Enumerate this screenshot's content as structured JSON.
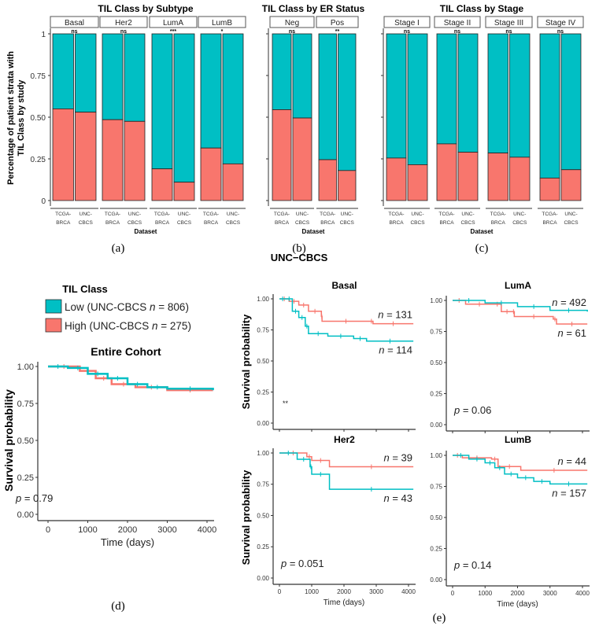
{
  "colors": {
    "low": "#00BFC4",
    "high": "#F8766D"
  },
  "bar_common": {
    "ylabel_line1": "Percentage of patient strata with",
    "ylabel_line2": "TIL Class by study",
    "xlabel": "Dataset",
    "yticks": [
      "0",
      "0.25",
      "0.50",
      "0.75",
      "1"
    ],
    "datasets": [
      [
        "TCGA-",
        "BRCA"
      ],
      [
        "UNC-",
        "CBCS"
      ]
    ]
  },
  "captions": {
    "a": "(a)",
    "b": "(b)",
    "c": "(c)",
    "d": "(d)",
    "e": "(e)"
  },
  "km_header": "UNC−CBCS",
  "legend": {
    "title": "TIL Class",
    "items": [
      {
        "label": "Low (UNC-CBCS ",
        "n": "n",
        "value": " = 806)",
        "color": "#00BFC4"
      },
      {
        "label": "High (UNC-CBCS ",
        "n": "n",
        "value": " = 275)",
        "color": "#F8766D"
      }
    ]
  },
  "km_common": {
    "ylabel": "Survival probability",
    "xlabel": "Time (days)",
    "yticks": [
      "0.00",
      "0.25",
      "0.50",
      "0.75",
      "1.00"
    ],
    "xticks": [
      "0",
      "1000",
      "2000",
      "3000",
      "4000"
    ]
  },
  "chart_data": [
    {
      "type": "bar",
      "stacked": true,
      "title": "TIL Class by Subtype",
      "ylim": [
        0,
        1
      ],
      "facets": [
        {
          "label": "Basal",
          "sig": "ns",
          "high": [
            0.55,
            0.53
          ]
        },
        {
          "label": "Her2",
          "sig": "ns",
          "high": [
            0.485,
            0.475
          ]
        },
        {
          "label": "LumA",
          "sig": "***",
          "high": [
            0.19,
            0.11
          ]
        },
        {
          "label": "LumB",
          "sig": "*",
          "high": [
            0.315,
            0.22
          ]
        }
      ]
    },
    {
      "type": "bar",
      "stacked": true,
      "title": "TIL Class by ER Status",
      "ylim": [
        0,
        1
      ],
      "facets": [
        {
          "label": "Neg",
          "sig": "ns",
          "high": [
            0.545,
            0.495
          ]
        },
        {
          "label": "Pos",
          "sig": "**",
          "high": [
            0.245,
            0.18
          ]
        }
      ]
    },
    {
      "type": "bar",
      "stacked": true,
      "title": "TIL Class by Stage",
      "ylim": [
        0,
        1
      ],
      "facets": [
        {
          "label": "Stage I",
          "sig": "ns",
          "high": [
            0.255,
            0.215
          ]
        },
        {
          "label": "Stage II",
          "sig": "ns",
          "high": [
            0.34,
            0.29
          ]
        },
        {
          "label": "Stage III",
          "sig": "ns",
          "high": [
            0.285,
            0.26
          ]
        },
        {
          "label": "Stage IV",
          "sig": "ns",
          "high": [
            0.135,
            0.185
          ]
        }
      ]
    },
    {
      "type": "line",
      "step": true,
      "title": "Entire Cohort",
      "xlim": [
        0,
        4150
      ],
      "ylim": [
        0,
        1
      ],
      "pval": "= 0.79",
      "low": [
        [
          0,
          1
        ],
        [
          500,
          0.99
        ],
        [
          1000,
          0.95
        ],
        [
          1500,
          0.92
        ],
        [
          2000,
          0.88
        ],
        [
          2500,
          0.86
        ],
        [
          3000,
          0.85
        ],
        [
          4150,
          0.84
        ]
      ],
      "high": [
        [
          0,
          1
        ],
        [
          800,
          0.97
        ],
        [
          1200,
          0.92
        ],
        [
          1600,
          0.88
        ],
        [
          2200,
          0.86
        ],
        [
          3000,
          0.84
        ],
        [
          4150,
          0.84
        ]
      ]
    },
    {
      "type": "line",
      "step": true,
      "title": "Basal",
      "xlim": [
        0,
        4150
      ],
      "ylim": [
        0,
        1
      ],
      "sig": "**",
      "n_high": "= 131",
      "n_low": "= 114",
      "high": [
        [
          0,
          1
        ],
        [
          300,
          0.98
        ],
        [
          600,
          0.95
        ],
        [
          900,
          0.9
        ],
        [
          1300,
          0.86
        ],
        [
          1320,
          0.82
        ],
        [
          2800,
          0.82
        ],
        [
          2900,
          0.8
        ],
        [
          4150,
          0.8
        ]
      ],
      "low": [
        [
          0,
          1
        ],
        [
          200,
          1
        ],
        [
          400,
          0.9
        ],
        [
          600,
          0.85
        ],
        [
          800,
          0.78
        ],
        [
          900,
          0.72
        ],
        [
          1500,
          0.7
        ],
        [
          2300,
          0.68
        ],
        [
          2700,
          0.66
        ],
        [
          4150,
          0.66
        ]
      ]
    },
    {
      "type": "line",
      "step": true,
      "title": "LumA",
      "xlim": [
        0,
        4150
      ],
      "ylim": [
        0,
        1
      ],
      "pval": "= 0.06",
      "n_low": "= 492",
      "n_high": "= 61",
      "low": [
        [
          0,
          1
        ],
        [
          1000,
          0.98
        ],
        [
          2000,
          0.95
        ],
        [
          3000,
          0.92
        ],
        [
          4150,
          0.91
        ]
      ],
      "high": [
        [
          0,
          1
        ],
        [
          400,
          0.97
        ],
        [
          1250,
          0.97
        ],
        [
          1500,
          0.91
        ],
        [
          1850,
          0.91
        ],
        [
          1900,
          0.87
        ],
        [
          3100,
          0.85
        ],
        [
          3200,
          0.81
        ],
        [
          4150,
          0.81
        ]
      ]
    },
    {
      "type": "line",
      "step": true,
      "title": "Her2",
      "xlim": [
        0,
        4150
      ],
      "ylim": [
        0,
        1
      ],
      "pval": "= 0.051",
      "n_high": "= 39",
      "n_low": "= 43",
      "high": [
        [
          0,
          1
        ],
        [
          850,
          0.97
        ],
        [
          1000,
          0.94
        ],
        [
          1550,
          0.89
        ],
        [
          4150,
          0.89
        ]
      ],
      "low": [
        [
          0,
          1
        ],
        [
          550,
          0.95
        ],
        [
          950,
          0.89
        ],
        [
          1000,
          0.83
        ],
        [
          1550,
          0.71
        ],
        [
          4150,
          0.71
        ]
      ]
    },
    {
      "type": "line",
      "step": true,
      "title": "LumB",
      "xlim": [
        0,
        4150
      ],
      "ylim": [
        0,
        1
      ],
      "pval": "= 0.14",
      "n_high": "= 44",
      "n_low": "= 157",
      "high": [
        [
          0,
          1
        ],
        [
          300,
          0.98
        ],
        [
          1200,
          0.97
        ],
        [
          1400,
          0.91
        ],
        [
          2100,
          0.88
        ],
        [
          4150,
          0.88
        ]
      ],
      "low": [
        [
          0,
          1
        ],
        [
          500,
          0.97
        ],
        [
          1000,
          0.94
        ],
        [
          1300,
          0.9
        ],
        [
          1600,
          0.85
        ],
        [
          2000,
          0.82
        ],
        [
          2500,
          0.79
        ],
        [
          3000,
          0.77
        ],
        [
          4150,
          0.77
        ]
      ]
    }
  ]
}
